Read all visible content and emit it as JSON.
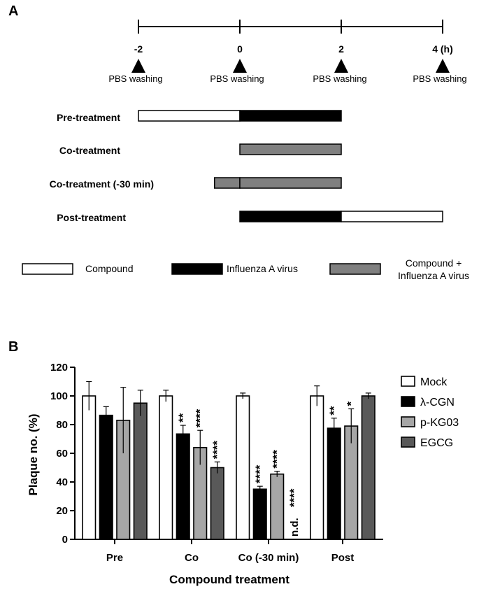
{
  "panel_a": {
    "label": "A",
    "timeline": {
      "ticks": [
        "-2",
        "0",
        "2",
        "4 (h)"
      ],
      "washing_label": "PBS washing"
    },
    "rows": [
      {
        "label": "Pre-treatment",
        "segments": [
          {
            "kind": "compound",
            "from": -2,
            "to": 0
          },
          {
            "kind": "virus",
            "from": 0,
            "to": 2
          }
        ]
      },
      {
        "label": "Co-treatment",
        "segments": [
          {
            "kind": "mix",
            "from": 0,
            "to": 2
          }
        ]
      },
      {
        "label": "Co-treatment (-30 min)",
        "segments": [
          {
            "kind": "mix",
            "from": -0.5,
            "to": 0
          },
          {
            "kind": "mix",
            "from": 0,
            "to": 2
          }
        ]
      },
      {
        "label": "Post-treatment",
        "segments": [
          {
            "kind": "virus",
            "from": 0,
            "to": 2
          },
          {
            "kind": "compound",
            "from": 2,
            "to": 4
          }
        ]
      }
    ],
    "legend": {
      "compound": "Compound",
      "virus": "Influenza A virus",
      "mix_line1": "Compound +",
      "mix_line2": "Influenza A virus"
    },
    "colors": {
      "compound": "#ffffff",
      "virus": "#000000",
      "mix": "#808080"
    }
  },
  "panel_b": {
    "label": "B"
  },
  "chart_data": {
    "type": "bar",
    "xlabel": "Compound treatment",
    "ylabel": "Plaque no. (%)",
    "ylim": [
      0,
      120
    ],
    "yticks": [
      "0",
      "20",
      "40",
      "60",
      "80",
      "100",
      "120"
    ],
    "categories": [
      "Pre",
      "Co",
      "Co (-30 min)",
      "Post"
    ],
    "legend_position": "right",
    "series": [
      {
        "name": "Mock",
        "color": "#ffffff",
        "values": [
          100,
          100,
          100,
          100
        ],
        "errors": [
          10,
          4,
          2,
          7
        ],
        "annotations": [
          "",
          "",
          "",
          ""
        ]
      },
      {
        "name": "λ-CGN",
        "color": "#000000",
        "values": [
          86.5,
          73.5,
          35,
          77.5
        ],
        "errors": [
          6,
          6,
          2,
          7
        ],
        "annotations": [
          "",
          "**",
          "****",
          "**"
        ]
      },
      {
        "name": "p-KG03",
        "color": "#a6a6a6",
        "values": [
          83,
          64,
          45.5,
          79
        ],
        "errors": [
          23,
          12,
          2,
          12
        ],
        "annotations": [
          "",
          "****",
          "****",
          "*"
        ]
      },
      {
        "name": "EGCG",
        "color": "#595959",
        "values": [
          95,
          50,
          null,
          100
        ],
        "errors": [
          9,
          4,
          null,
          2
        ],
        "annotations": [
          "",
          "****",
          "****",
          ""
        ],
        "missing_label": "n.d."
      }
    ]
  }
}
